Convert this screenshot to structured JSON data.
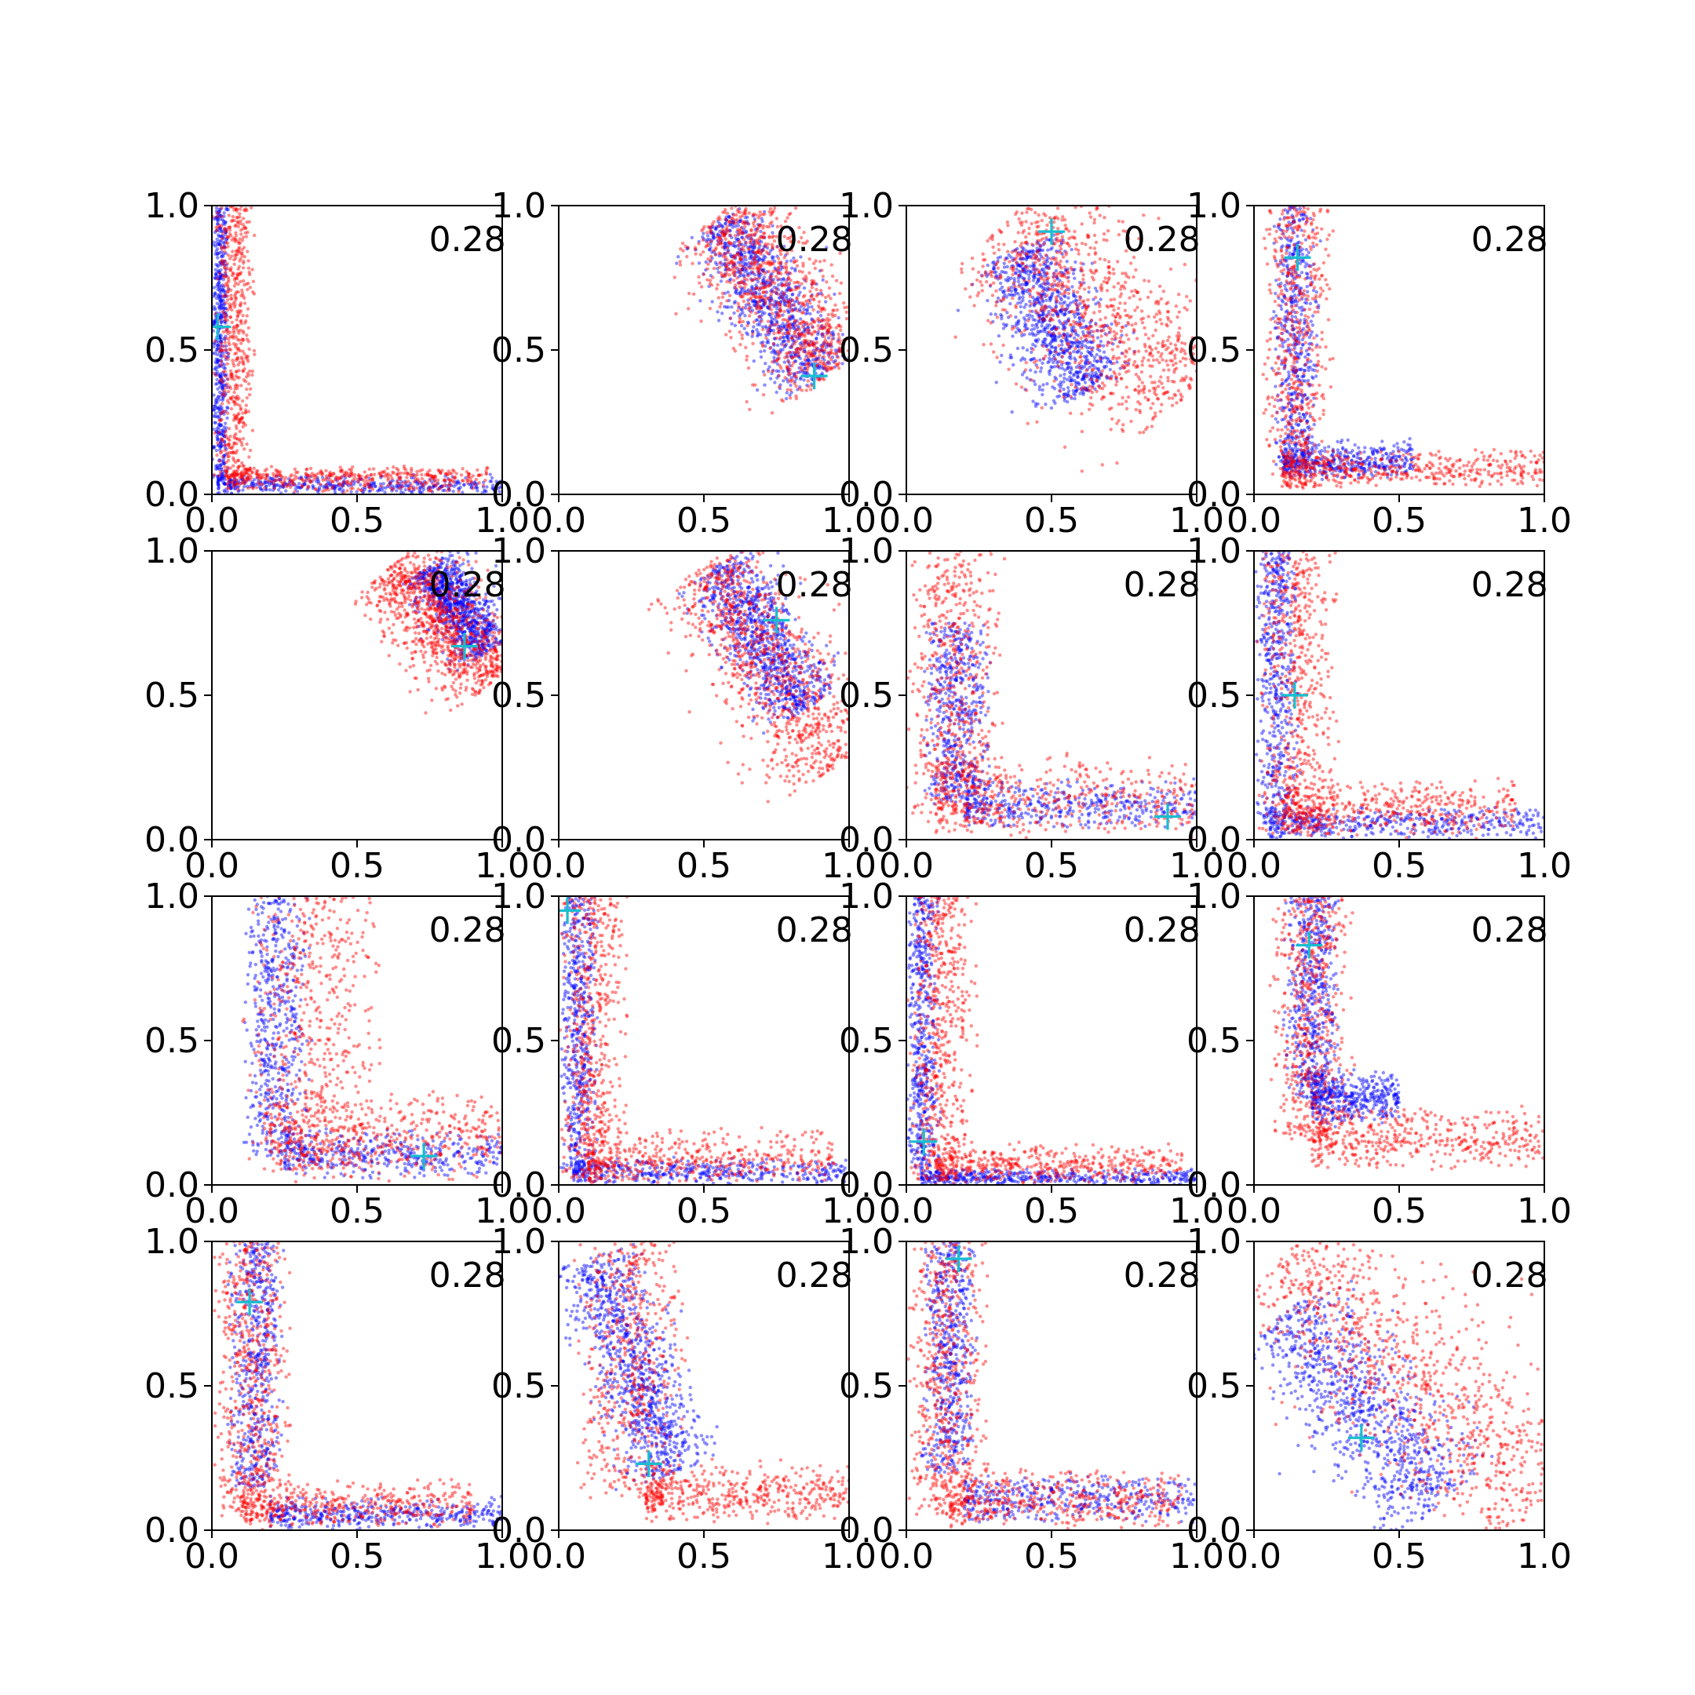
{
  "colors": {
    "series_a": "#0000ff",
    "series_b": "#ff0000",
    "marker": "#17becf",
    "axis": "#000000"
  },
  "chart_data": [
    {
      "type": "scatter",
      "annotation": "0.28",
      "xlim": [
        0,
        1
      ],
      "ylim": [
        0,
        1
      ],
      "xticks": [
        "0.0",
        "0.5",
        "1.0"
      ],
      "yticks": [
        "0.0",
        "0.5",
        "1.0"
      ],
      "marker": {
        "x": 0.02,
        "y": 0.58
      },
      "blue_shape": "L",
      "blue_params": {
        "vx": [
          0.0,
          0.03,
          0.06
        ],
        "vy": [
          0.05,
          1.0
        ],
        "hx": [
          0.02,
          1.0
        ],
        "hy": [
          0.0,
          0.03,
          0.07
        ]
      },
      "red_shape": "L",
      "red_params": {
        "vx": [
          0.0,
          0.09,
          0.15
        ],
        "vy": [
          0.05,
          1.0
        ],
        "hx": [
          0.05,
          0.95
        ],
        "hy": [
          0.0,
          0.07,
          0.1
        ]
      }
    },
    {
      "type": "scatter",
      "annotation": "0.28",
      "xlim": [
        0,
        1
      ],
      "ylim": [
        0,
        1
      ],
      "xticks": [
        "0.0",
        "0.5",
        "1.0"
      ],
      "yticks": [
        "0.0",
        "0.5",
        "1.0"
      ],
      "marker": {
        "x": 0.88,
        "y": 0.41
      },
      "blue_shape": "band",
      "blue_params": {
        "p0": [
          0.55,
          0.95
        ],
        "p1": [
          0.9,
          0.4
        ],
        "width": 0.07
      },
      "red_shape": "band",
      "red_params": {
        "p0": [
          0.55,
          0.97
        ],
        "p1": [
          0.95,
          0.42
        ],
        "width": 0.1
      }
    },
    {
      "type": "scatter",
      "annotation": "0.28",
      "xlim": [
        0,
        1
      ],
      "ylim": [
        0,
        1
      ],
      "xticks": [
        "0.0",
        "0.5",
        "1.0"
      ],
      "yticks": [
        "0.0",
        "0.5",
        "1.0"
      ],
      "marker": {
        "x": 0.5,
        "y": 0.91
      },
      "blue_shape": "band",
      "blue_params": {
        "p0": [
          0.38,
          0.85
        ],
        "p1": [
          0.62,
          0.35
        ],
        "width": 0.08
      },
      "red_shape": "band",
      "red_params": {
        "p0": [
          0.35,
          0.95
        ],
        "p1": [
          0.95,
          0.32
        ],
        "width": 0.14
      }
    },
    {
      "type": "scatter",
      "annotation": "0.28",
      "xlim": [
        0,
        1
      ],
      "ylim": [
        0,
        1
      ],
      "xticks": [
        "0.0",
        "0.5",
        "1.0"
      ],
      "yticks": [
        "0.0",
        "0.5",
        "1.0"
      ],
      "marker": {
        "x": 0.15,
        "y": 0.82
      },
      "blue_shape": "L",
      "blue_params": {
        "vx": [
          0.06,
          0.14,
          0.23
        ],
        "vy": [
          0.1,
          1.0
        ],
        "hx": [
          0.1,
          0.55
        ],
        "hy": [
          0.05,
          0.1,
          0.2
        ]
      },
      "red_shape": "L",
      "red_params": {
        "vx": [
          0.03,
          0.14,
          0.28
        ],
        "vy": [
          0.02,
          1.0
        ],
        "hx": [
          0.1,
          1.0
        ],
        "hy": [
          0.02,
          0.08,
          0.16
        ]
      }
    },
    {
      "type": "scatter",
      "annotation": "0.28",
      "xlim": [
        0,
        1
      ],
      "ylim": [
        0,
        1
      ],
      "xticks": [
        "0.0",
        "0.5",
        "1.0"
      ],
      "yticks": [
        "0.0",
        "0.5",
        "1.0"
      ],
      "marker": {
        "x": 0.87,
        "y": 0.67
      },
      "blue_shape": "band",
      "blue_params": {
        "p0": [
          0.75,
          0.95
        ],
        "p1": [
          0.95,
          0.65
        ],
        "width": 0.05
      },
      "red_shape": "band",
      "red_params": {
        "p0": [
          0.62,
          0.95
        ],
        "p1": [
          0.97,
          0.55
        ],
        "width": 0.08
      }
    },
    {
      "type": "scatter",
      "annotation": "0.28",
      "xlim": [
        0,
        1
      ],
      "ylim": [
        0,
        1
      ],
      "xticks": [
        "0.0",
        "0.5",
        "1.0"
      ],
      "yticks": [
        "0.0",
        "0.5",
        "1.0"
      ],
      "marker": {
        "x": 0.75,
        "y": 0.76
      },
      "blue_shape": "band",
      "blue_params": {
        "p0": [
          0.55,
          0.95
        ],
        "p1": [
          0.85,
          0.45
        ],
        "width": 0.07
      },
      "red_shape": "band",
      "red_params": {
        "p0": [
          0.5,
          0.95
        ],
        "p1": [
          0.95,
          0.25
        ],
        "width": 0.1
      }
    },
    {
      "type": "scatter",
      "annotation": "0.28",
      "xlim": [
        0,
        1
      ],
      "ylim": [
        0,
        1
      ],
      "xticks": [
        "0.0",
        "0.5",
        "1.0"
      ],
      "yticks": [
        "0.0",
        "0.5",
        "1.0"
      ],
      "marker": {
        "x": 0.9,
        "y": 0.08
      },
      "blue_shape": "L",
      "blue_params": {
        "vx": [
          0.05,
          0.18,
          0.3
        ],
        "vy": [
          0.12,
          0.75
        ],
        "hx": [
          0.2,
          1.0
        ],
        "hy": [
          0.03,
          0.1,
          0.22
        ]
      },
      "red_shape": "L",
      "red_params": {
        "vx": [
          0.0,
          0.15,
          0.35
        ],
        "vy": [
          0.05,
          1.0
        ],
        "hx": [
          0.1,
          1.0
        ],
        "hy": [
          0.0,
          0.12,
          0.3
        ]
      }
    },
    {
      "type": "scatter",
      "annotation": "0.28",
      "xlim": [
        0,
        1
      ],
      "ylim": [
        0,
        1
      ],
      "xticks": [
        "0.0",
        "0.5",
        "1.0"
      ],
      "yticks": [
        "0.0",
        "0.5",
        "1.0"
      ],
      "marker": {
        "x": 0.14,
        "y": 0.5
      },
      "blue_shape": "L",
      "blue_params": {
        "vx": [
          0.0,
          0.08,
          0.16
        ],
        "vy": [
          0.05,
          1.0
        ],
        "hx": [
          0.05,
          1.0
        ],
        "hy": [
          0.0,
          0.05,
          0.12
        ]
      },
      "red_shape": "L",
      "red_params": {
        "vx": [
          0.0,
          0.15,
          0.3
        ],
        "vy": [
          0.02,
          1.0
        ],
        "hx": [
          0.1,
          0.9
        ],
        "hy": [
          0.0,
          0.1,
          0.22
        ]
      }
    },
    {
      "type": "scatter",
      "annotation": "0.28",
      "xlim": [
        0,
        1
      ],
      "ylim": [
        0,
        1
      ],
      "xticks": [
        "0.0",
        "0.5",
        "1.0"
      ],
      "yticks": [
        "0.0",
        "0.5",
        "1.0"
      ],
      "marker": {
        "x": 0.73,
        "y": 0.1
      },
      "blue_shape": "L",
      "blue_params": {
        "vx": [
          0.1,
          0.2,
          0.35
        ],
        "vy": [
          0.1,
          1.0
        ],
        "hx": [
          0.25,
          1.0
        ],
        "hy": [
          0.02,
          0.1,
          0.2
        ]
      },
      "red_shape": "L",
      "red_params": {
        "vx": [
          0.1,
          0.35,
          0.6
        ],
        "vy": [
          0.05,
          1.0
        ],
        "hx": [
          0.2,
          1.0
        ],
        "hy": [
          0.0,
          0.15,
          0.35
        ]
      }
    },
    {
      "type": "scatter",
      "annotation": "0.28",
      "xlim": [
        0,
        1
      ],
      "ylim": [
        0,
        1
      ],
      "xticks": [
        "0.0",
        "0.5",
        "1.0"
      ],
      "yticks": [
        "0.0",
        "0.5",
        "1.0"
      ],
      "marker": {
        "x": 0.03,
        "y": 0.95
      },
      "blue_shape": "L",
      "blue_params": {
        "vx": [
          0.0,
          0.06,
          0.14
        ],
        "vy": [
          0.05,
          1.0
        ],
        "hx": [
          0.05,
          1.0
        ],
        "hy": [
          0.0,
          0.04,
          0.1
        ]
      },
      "red_shape": "L",
      "red_params": {
        "vx": [
          0.0,
          0.1,
          0.25
        ],
        "vy": [
          0.02,
          1.0
        ],
        "hx": [
          0.1,
          0.95
        ],
        "hy": [
          0.0,
          0.08,
          0.2
        ]
      }
    },
    {
      "type": "scatter",
      "annotation": "0.28",
      "xlim": [
        0,
        1
      ],
      "ylim": [
        0,
        1
      ],
      "xticks": [
        "0.0",
        "0.5",
        "1.0"
      ],
      "yticks": [
        "0.0",
        "0.5",
        "1.0"
      ],
      "marker": {
        "x": 0.06,
        "y": 0.15
      },
      "blue_shape": "L",
      "blue_params": {
        "vx": [
          0.0,
          0.05,
          0.12
        ],
        "vy": [
          0.05,
          1.0
        ],
        "hx": [
          0.05,
          1.0
        ],
        "hy": [
          0.0,
          0.02,
          0.06
        ]
      },
      "red_shape": "L",
      "red_params": {
        "vx": [
          0.0,
          0.1,
          0.25
        ],
        "vy": [
          0.02,
          1.0
        ],
        "hx": [
          0.1,
          0.95
        ],
        "hy": [
          0.0,
          0.06,
          0.15
        ]
      }
    },
    {
      "type": "scatter",
      "annotation": "0.28",
      "xlim": [
        0,
        1
      ],
      "ylim": [
        0,
        1
      ],
      "xticks": [
        "0.0",
        "0.5",
        "1.0"
      ],
      "yticks": [
        "0.0",
        "0.5",
        "1.0"
      ],
      "marker": {
        "x": 0.19,
        "y": 0.83
      },
      "blue_shape": "L",
      "blue_params": {
        "vx": [
          0.1,
          0.2,
          0.3
        ],
        "vy": [
          0.3,
          1.0
        ],
        "hx": [
          0.2,
          0.5
        ],
        "hy": [
          0.2,
          0.3,
          0.4
        ]
      },
      "red_shape": "L",
      "red_params": {
        "vx": [
          0.05,
          0.2,
          0.35
        ],
        "vy": [
          0.15,
          1.0
        ],
        "hx": [
          0.2,
          1.0
        ],
        "hy": [
          0.05,
          0.15,
          0.28
        ]
      }
    },
    {
      "type": "scatter",
      "annotation": "0.28",
      "xlim": [
        0,
        1
      ],
      "ylim": [
        0,
        1
      ],
      "xticks": [
        "0.0",
        "0.5",
        "1.0"
      ],
      "yticks": [
        "0.0",
        "0.5",
        "1.0"
      ],
      "marker": {
        "x": 0.13,
        "y": 0.79
      },
      "blue_shape": "L",
      "blue_params": {
        "vx": [
          0.05,
          0.15,
          0.25
        ],
        "vy": [
          0.15,
          1.0
        ],
        "hx": [
          0.2,
          1.0
        ],
        "hy": [
          0.0,
          0.05,
          0.12
        ]
      },
      "red_shape": "L",
      "red_params": {
        "vx": [
          0.0,
          0.13,
          0.28
        ],
        "vy": [
          0.05,
          1.0
        ],
        "hx": [
          0.1,
          0.9
        ],
        "hy": [
          0.0,
          0.08,
          0.18
        ]
      }
    },
    {
      "type": "scatter",
      "annotation": "0.28",
      "xlim": [
        0,
        1
      ],
      "ylim": [
        0,
        1
      ],
      "xticks": [
        "0.0",
        "0.5",
        "1.0"
      ],
      "yticks": [
        "0.0",
        "0.5",
        "1.0"
      ],
      "marker": {
        "x": 0.31,
        "y": 0.23
      },
      "blue_shape": "band",
      "blue_params": {
        "p0": [
          0.12,
          0.95
        ],
        "p1": [
          0.4,
          0.2
        ],
        "width": 0.07
      },
      "red_shape": "L",
      "red_params": {
        "vx": [
          0.05,
          0.25,
          0.45
        ],
        "vy": [
          0.1,
          1.0
        ],
        "hx": [
          0.3,
          1.0
        ],
        "hy": [
          0.02,
          0.12,
          0.25
        ]
      }
    },
    {
      "type": "scatter",
      "annotation": "0.28",
      "xlim": [
        0,
        1
      ],
      "ylim": [
        0,
        1
      ],
      "xticks": [
        "0.0",
        "0.5",
        "1.0"
      ],
      "yticks": [
        "0.0",
        "0.5",
        "1.0"
      ],
      "marker": {
        "x": 0.18,
        "y": 0.94
      },
      "blue_shape": "L",
      "blue_params": {
        "vx": [
          0.05,
          0.15,
          0.25
        ],
        "vy": [
          0.2,
          1.0
        ],
        "hx": [
          0.2,
          1.0
        ],
        "hy": [
          0.02,
          0.1,
          0.2
        ]
      },
      "red_shape": "L",
      "red_params": {
        "vx": [
          0.0,
          0.13,
          0.3
        ],
        "vy": [
          0.05,
          1.0
        ],
        "hx": [
          0.15,
          0.95
        ],
        "hy": [
          0.0,
          0.1,
          0.22
        ]
      }
    },
    {
      "type": "scatter",
      "annotation": "0.28",
      "xlim": [
        0,
        1
      ],
      "ylim": [
        0,
        1
      ],
      "xticks": [
        "0.0",
        "0.5",
        "1.0"
      ],
      "yticks": [
        "0.0",
        "0.5",
        "1.0"
      ],
      "marker": {
        "x": 0.37,
        "y": 0.32
      },
      "blue_shape": "band",
      "blue_params": {
        "p0": [
          0.1,
          0.75
        ],
        "p1": [
          0.65,
          0.1
        ],
        "width": 0.1
      },
      "red_shape": "band",
      "red_params": {
        "p0": [
          0.1,
          0.95
        ],
        "p1": [
          1.0,
          0.1
        ],
        "width": 0.15
      }
    }
  ]
}
